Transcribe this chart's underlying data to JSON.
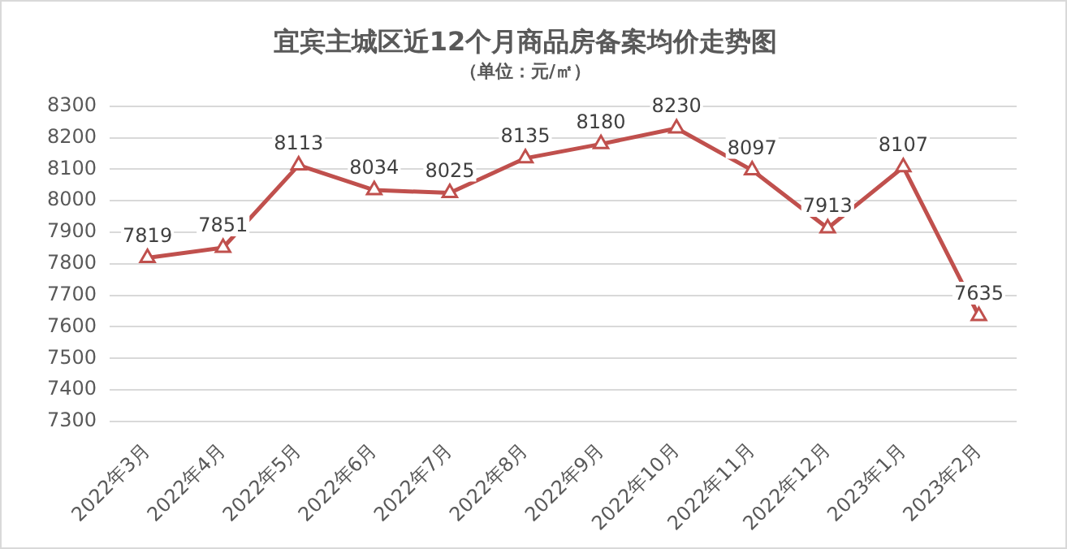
{
  "chart_data": {
    "type": "line",
    "title": "宜宾主城区近12个月商品房备案均价走势图",
    "subtitle": "（单位：元/㎡）",
    "categories": [
      "2022年3月",
      "2022年4月",
      "2022年5月",
      "2022年6月",
      "2022年7月",
      "2022年8月",
      "2022年9月",
      "2022年10月",
      "2022年11月",
      "2022年12月",
      "2023年1月",
      "2023年2月"
    ],
    "values": [
      7819,
      7851,
      8113,
      8034,
      8025,
      8135,
      8180,
      8230,
      8097,
      7913,
      8107,
      7635
    ],
    "color": "#c0504d",
    "marker": "triangle",
    "line_style": "solid",
    "data_labels": true,
    "grid": "y",
    "legend": false,
    "ylim": [
      7300,
      8300
    ],
    "yticks": [
      7300,
      7400,
      7500,
      7600,
      7700,
      7800,
      7900,
      8000,
      8100,
      8200,
      8300
    ]
  }
}
